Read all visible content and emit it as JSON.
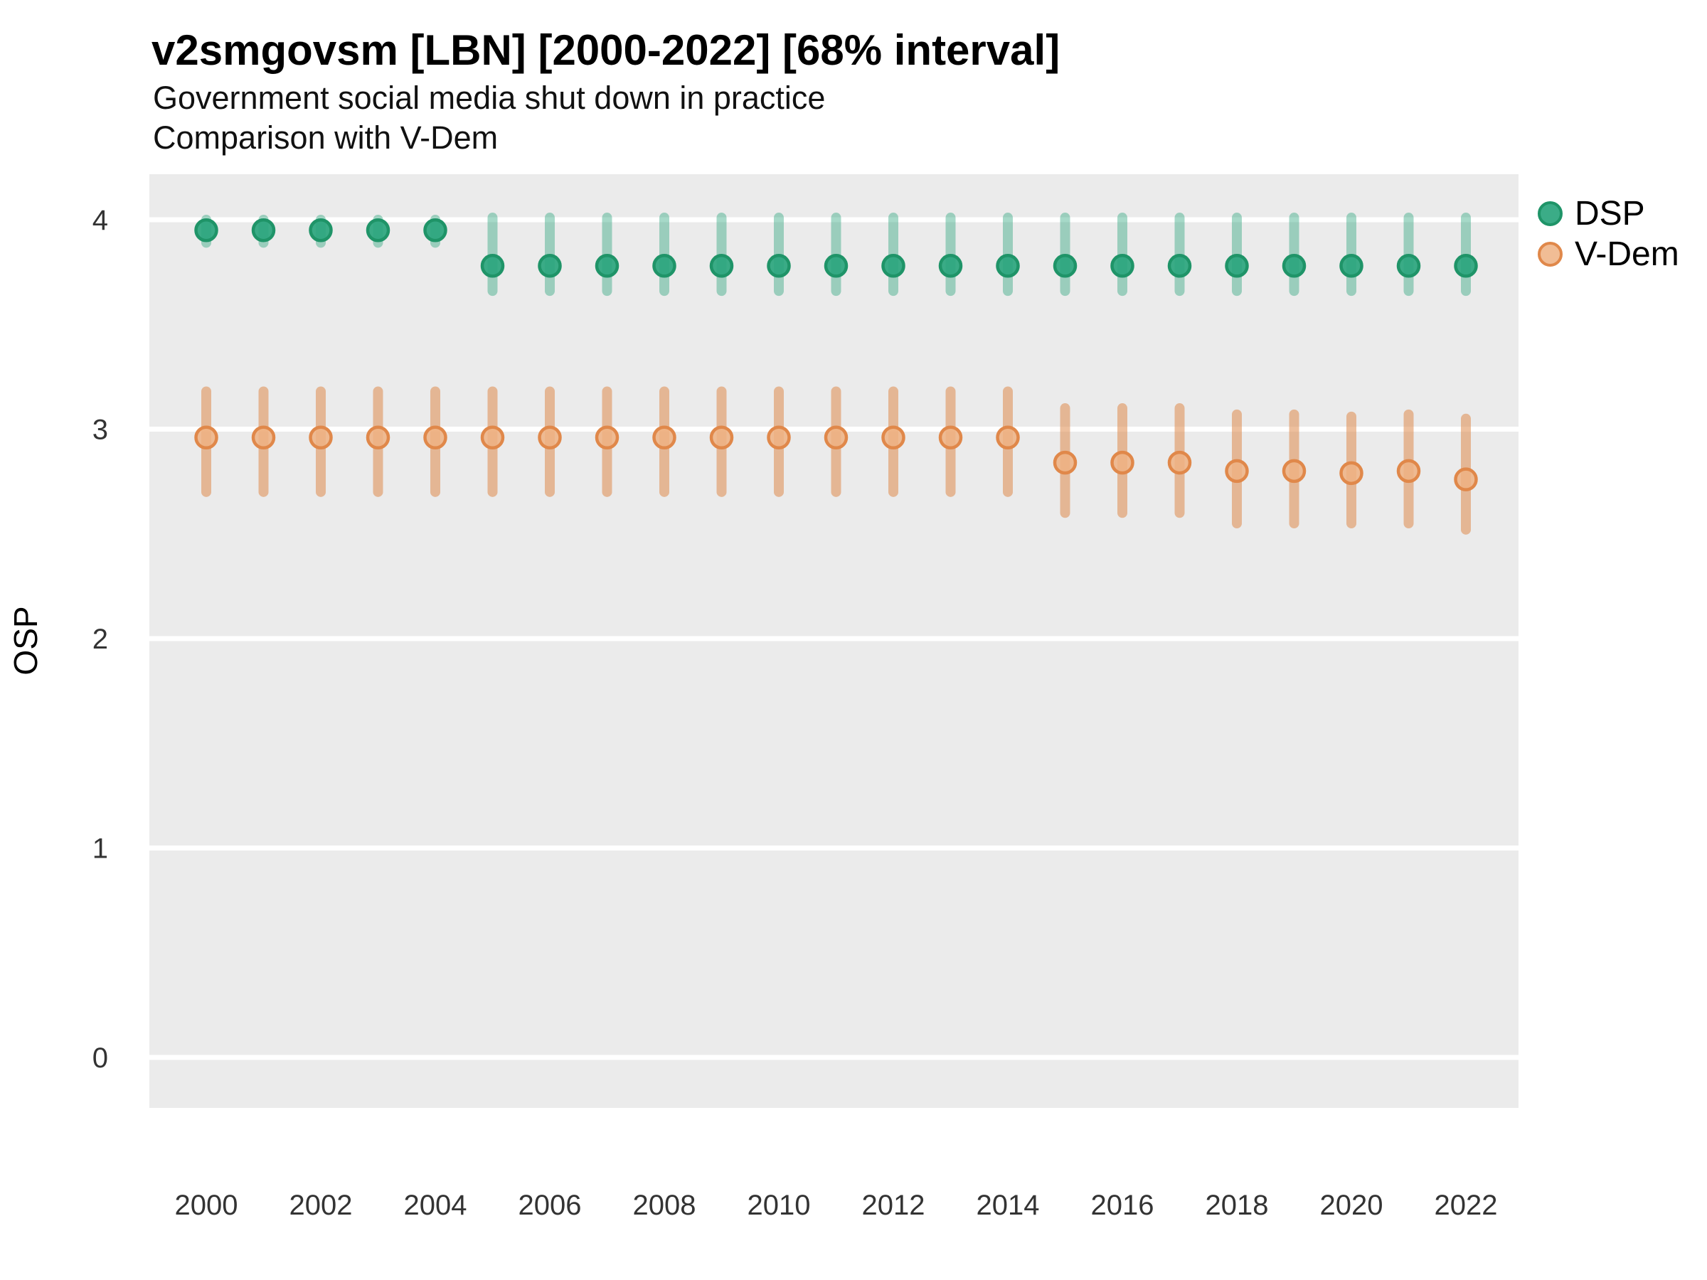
{
  "header": {
    "title": "v2smgovsm [LBN] [2000-2022] [68% interval]",
    "subtitle_line1": "Government social media shut down in practice",
    "subtitle_line2": "Comparison with V-Dem"
  },
  "y_axis": {
    "label": "OSP",
    "ticks": [
      "0",
      "1",
      "2",
      "3",
      "4"
    ],
    "tick_values": [
      0,
      1,
      2,
      3,
      4
    ]
  },
  "x_axis": {
    "tick_labels": [
      "2000",
      "2002",
      "2004",
      "2006",
      "2008",
      "2010",
      "2012",
      "2014",
      "2016",
      "2018",
      "2020",
      "2022"
    ],
    "tick_values": [
      2000,
      2002,
      2004,
      2006,
      2008,
      2010,
      2012,
      2014,
      2016,
      2018,
      2020,
      2022
    ]
  },
  "legend": {
    "items": [
      {
        "label": "DSP",
        "fill": "rgba(42,165,125,0.92)",
        "stroke": "#1f9468"
      },
      {
        "label": "V-Dem",
        "fill": "rgba(238,177,131,0.85)",
        "stroke": "#e0884a"
      }
    ]
  },
  "colors": {
    "panel_bg": "#ebebeb",
    "gridline": "#ffffff",
    "tick_text": "#333333",
    "axis_title_text": "#000000"
  },
  "chart_data": {
    "type": "pointrange",
    "title": "v2smgovsm [LBN] [2000-2022] [68% interval]",
    "subtitle": "Government social media shut down in practice — Comparison with V-Dem",
    "interval": "68%",
    "xlabel": "",
    "ylabel": "OSP",
    "ylim": [
      -0.24,
      4.23
    ],
    "xlim": [
      1999,
      2023
    ],
    "grid": "horizontal-major-only",
    "legend_position": "right",
    "x": [
      2000,
      2001,
      2002,
      2003,
      2004,
      2005,
      2006,
      2007,
      2008,
      2009,
      2010,
      2011,
      2012,
      2013,
      2014,
      2015,
      2016,
      2017,
      2018,
      2019,
      2020,
      2021,
      2022
    ],
    "series": [
      {
        "name": "DSP",
        "point_fill": "#2aa57d",
        "point_fill_opacity": 0.92,
        "point_stroke": "#1f9468",
        "interval_color": "#2aa57d",
        "interval_opacity": 0.42,
        "estimates": [
          3.95,
          3.95,
          3.95,
          3.95,
          3.95,
          3.78,
          3.78,
          3.78,
          3.78,
          3.78,
          3.78,
          3.78,
          3.78,
          3.78,
          3.78,
          3.78,
          3.78,
          3.78,
          3.78,
          3.78,
          3.78,
          3.78,
          3.78
        ],
        "lower": [
          3.89,
          3.89,
          3.89,
          3.89,
          3.89,
          3.66,
          3.66,
          3.66,
          3.66,
          3.66,
          3.66,
          3.66,
          3.66,
          3.66,
          3.66,
          3.66,
          3.66,
          3.66,
          3.66,
          3.66,
          3.66,
          3.66,
          3.66
        ],
        "upper": [
          4.0,
          4.0,
          4.0,
          4.0,
          4.0,
          4.01,
          4.01,
          4.01,
          4.01,
          4.01,
          4.01,
          4.01,
          4.01,
          4.01,
          4.01,
          4.01,
          4.01,
          4.01,
          4.01,
          4.01,
          4.01,
          4.01,
          4.01
        ]
      },
      {
        "name": "V-Dem",
        "point_fill": "#eeb183",
        "point_fill_opacity": 0.85,
        "point_stroke": "#e0884a",
        "interval_color": "#df8a4c",
        "interval_opacity": 0.55,
        "estimates": [
          2.96,
          2.96,
          2.96,
          2.96,
          2.96,
          2.96,
          2.96,
          2.96,
          2.96,
          2.96,
          2.96,
          2.96,
          2.96,
          2.96,
          2.96,
          2.84,
          2.84,
          2.84,
          2.8,
          2.8,
          2.79,
          2.8,
          2.76
        ],
        "lower": [
          2.7,
          2.7,
          2.7,
          2.7,
          2.7,
          2.7,
          2.7,
          2.7,
          2.7,
          2.7,
          2.7,
          2.7,
          2.7,
          2.7,
          2.7,
          2.6,
          2.6,
          2.6,
          2.55,
          2.55,
          2.55,
          2.55,
          2.52
        ],
        "upper": [
          3.18,
          3.18,
          3.18,
          3.18,
          3.18,
          3.18,
          3.18,
          3.18,
          3.18,
          3.18,
          3.18,
          3.18,
          3.18,
          3.18,
          3.18,
          3.1,
          3.1,
          3.1,
          3.07,
          3.07,
          3.06,
          3.07,
          3.05
        ]
      }
    ]
  }
}
